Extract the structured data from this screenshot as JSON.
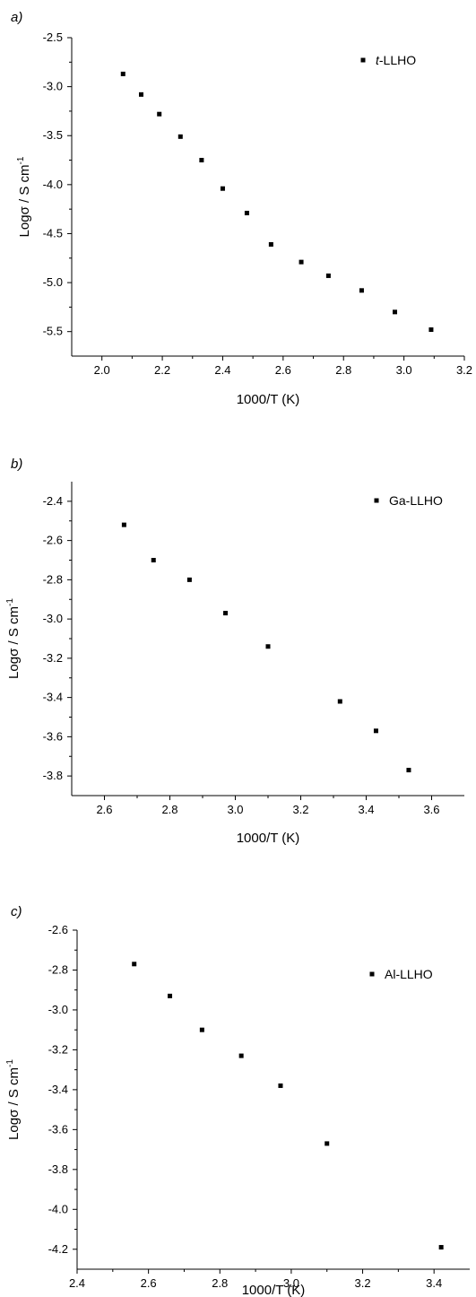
{
  "chart_data": [
    {
      "panel_label": "a)",
      "type": "scatter",
      "xlabel": "1000/T (K)",
      "ylabel_parts": [
        "Logσ / S cm",
        "-1"
      ],
      "xlim": [
        1.9,
        3.2
      ],
      "ylim": [
        -5.75,
        -2.5
      ],
      "xticks": [
        2.0,
        2.2,
        2.4,
        2.6,
        2.8,
        3.0,
        3.2
      ],
      "yticks": [
        -2.5,
        -3.0,
        -3.5,
        -4.0,
        -4.5,
        -5.0,
        -5.5
      ],
      "x_tick_labels": [
        "2.0",
        "2.2",
        "2.4",
        "2.6",
        "2.8",
        "3.0",
        "3.2"
      ],
      "y_tick_labels": [
        "-2.5",
        "-3.0",
        "-3.5",
        "-4.0",
        "-4.5",
        "-5.0",
        "-5.5"
      ],
      "grid": false,
      "legend_position": "top-right",
      "series": [
        {
          "name_parts": [
            "t",
            "-LLHO"
          ],
          "x": [
            2.07,
            2.13,
            2.19,
            2.26,
            2.33,
            2.4,
            2.48,
            2.56,
            2.66,
            2.75,
            2.86,
            2.97,
            3.09
          ],
          "y": [
            -2.87,
            -3.08,
            -3.28,
            -3.51,
            -3.75,
            -4.04,
            -4.29,
            -4.61,
            -4.79,
            -4.93,
            -5.08,
            -5.3,
            -5.48
          ]
        }
      ]
    },
    {
      "panel_label": "b)",
      "type": "scatter",
      "xlabel": "1000/T (K)",
      "ylabel_parts": [
        "Logσ / S cm",
        "-1"
      ],
      "xlim": [
        2.5,
        3.7
      ],
      "ylim": [
        -3.9,
        -2.3
      ],
      "xticks": [
        2.6,
        2.8,
        3.0,
        3.2,
        3.4,
        3.6
      ],
      "yticks": [
        -2.4,
        -2.6,
        -2.8,
        -3.0,
        -3.2,
        -3.4,
        -3.6,
        -3.8
      ],
      "x_tick_labels": [
        "2.6",
        "2.8",
        "3.0",
        "3.2",
        "3.4",
        "3.6"
      ],
      "y_tick_labels": [
        "-2.4",
        "-2.6",
        "-2.8",
        "-3.0",
        "-3.2",
        "-3.4",
        "-3.6",
        "-3.8"
      ],
      "grid": false,
      "legend_position": "top-right",
      "series": [
        {
          "name_parts": [
            "",
            "Ga-LLHO"
          ],
          "x": [
            2.66,
            2.75,
            2.86,
            2.97,
            3.1,
            3.32,
            3.43,
            3.53
          ],
          "y": [
            -2.52,
            -2.7,
            -2.8,
            -2.97,
            -3.14,
            -3.42,
            -3.57,
            -3.77
          ]
        }
      ]
    },
    {
      "panel_label": "c)",
      "type": "scatter",
      "xlabel": "1000/T (K)",
      "ylabel_parts": [
        "Logσ / S cm",
        "-1"
      ],
      "xlim": [
        2.4,
        3.5
      ],
      "ylim": [
        -4.3,
        -2.6
      ],
      "xticks": [
        2.4,
        2.6,
        2.8,
        3.0,
        3.2,
        3.4
      ],
      "yticks": [
        -2.6,
        -2.8,
        -3.0,
        -3.2,
        -3.4,
        -3.6,
        -3.8,
        -4.0,
        -4.2
      ],
      "x_tick_labels": [
        "2.4",
        "2.6",
        "2.8",
        "3.0",
        "3.2",
        "3.4"
      ],
      "y_tick_labels": [
        "-2.6",
        "-2.8",
        "-3.0",
        "-3.2",
        "-3.4",
        "-3.6",
        "-3.8",
        "-4.0",
        "-4.2"
      ],
      "grid": false,
      "legend_position": "top-right",
      "series": [
        {
          "name_parts": [
            "",
            "Al-LLHO"
          ],
          "x": [
            2.56,
            2.66,
            2.75,
            2.86,
            2.97,
            3.1,
            3.42
          ],
          "y": [
            -2.77,
            -2.93,
            -3.1,
            -3.23,
            -3.38,
            -3.67,
            -4.19
          ]
        }
      ]
    }
  ]
}
